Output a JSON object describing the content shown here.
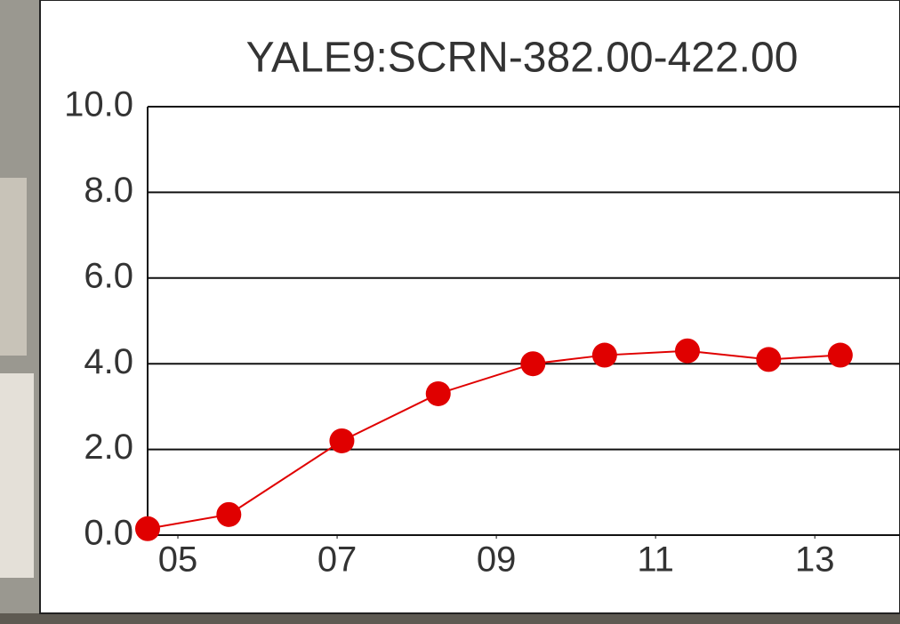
{
  "chart_data": {
    "type": "line",
    "title": "YALE9:SCRN-382.00-422.00",
    "x": [
      4.62,
      5.64,
      7.06,
      8.27,
      9.46,
      10.36,
      11.4,
      12.42,
      13.32
    ],
    "series": [
      {
        "color": "#e00000",
        "values": [
          0.15,
          0.48,
          2.2,
          3.3,
          4.0,
          4.2,
          4.3,
          4.1,
          4.2
        ]
      }
    ],
    "xlim": [
      4.62,
      14.07
    ],
    "xticks": [
      {
        "value": 5,
        "label": "05"
      },
      {
        "value": 7,
        "label": "07"
      },
      {
        "value": 9,
        "label": "09"
      },
      {
        "value": 11,
        "label": "11"
      },
      {
        "value": 13,
        "label": "13"
      }
    ],
    "ylim": [
      0,
      10
    ],
    "yticks": [
      {
        "value": 0,
        "label": "0.0"
      },
      {
        "value": 2,
        "label": "2.0"
      },
      {
        "value": 4,
        "label": "4.0"
      },
      {
        "value": 6,
        "label": "6.0"
      },
      {
        "value": 8,
        "label": "8.0"
      },
      {
        "value": 10,
        "label": "10.0"
      }
    ],
    "grid": true
  }
}
